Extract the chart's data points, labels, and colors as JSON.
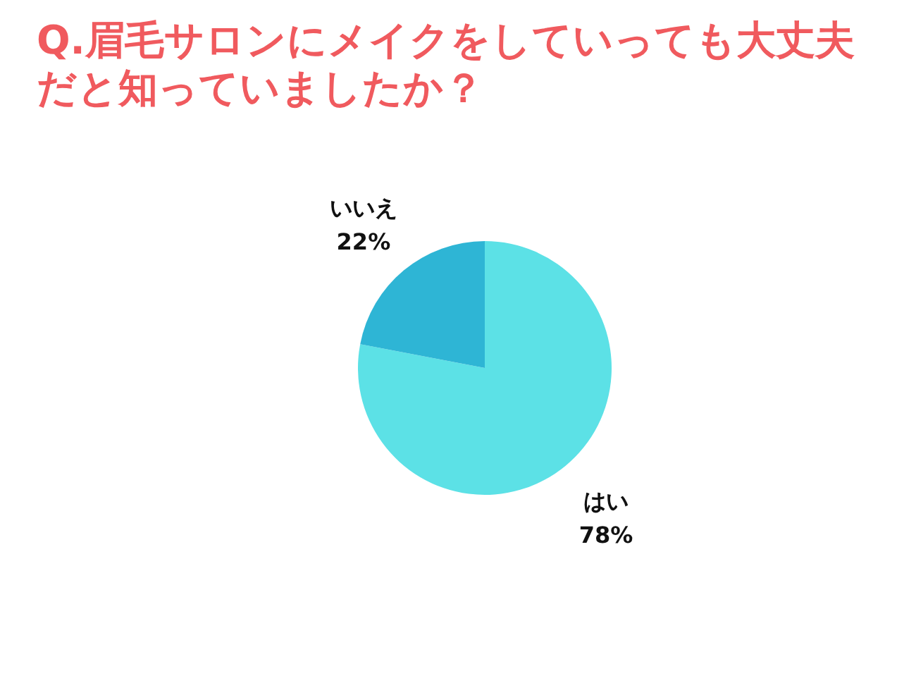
{
  "chart_data": {
    "type": "pie",
    "title": "Q.眉毛サロンにメイクをしていっても大丈夫だと知っていましたか？",
    "categories": [
      "はい",
      "いいえ"
    ],
    "values": [
      78,
      22
    ],
    "value_labels": [
      "78%",
      "22%"
    ],
    "colors": [
      "#5ce1e6",
      "#2eb5d5"
    ]
  }
}
